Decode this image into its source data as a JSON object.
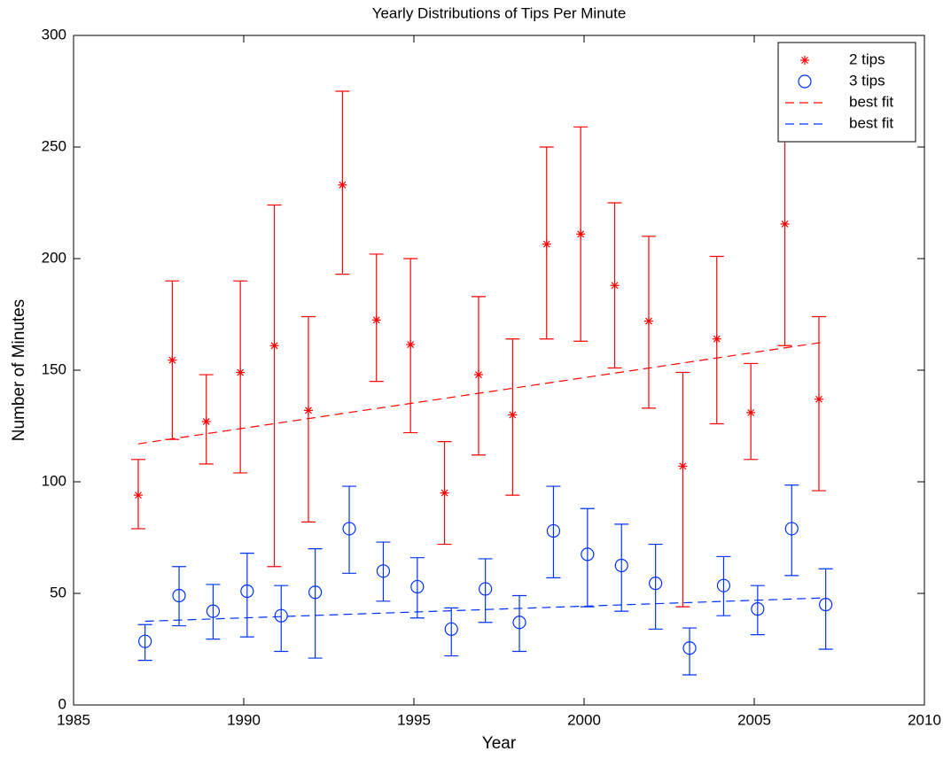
{
  "chart_data": {
    "type": "errorbar",
    "title": "Yearly Distributions of Tips Per Minute",
    "xlabel": "Year",
    "ylabel": "Number of Minutes",
    "xlim": [
      1985,
      2010
    ],
    "xticks": [
      1985,
      1990,
      1995,
      2000,
      2005,
      2010
    ],
    "ylim": [
      0,
      300
    ],
    "yticks": [
      0,
      50,
      100,
      150,
      200,
      250,
      300
    ],
    "grid": false,
    "legend": "upper right",
    "series": [
      {
        "name": "2 tips",
        "color": "#ff0000",
        "marker": "asterisk",
        "x": [
          1986.9,
          1987.9,
          1988.9,
          1989.9,
          1990.9,
          1991.9,
          1992.9,
          1993.9,
          1994.9,
          1995.9,
          1996.9,
          1997.9,
          1998.9,
          1999.9,
          2000.9,
          2001.9,
          2002.9,
          2003.9,
          2004.9,
          2005.9,
          2006.9
        ],
        "values": [
          94,
          154.5,
          127,
          149,
          161,
          132,
          233,
          172.5,
          161.5,
          95,
          148,
          130,
          206.5,
          211,
          188,
          172,
          107,
          164,
          131,
          215.5,
          137
        ],
        "lower": [
          79,
          119,
          108,
          104,
          62,
          82,
          193,
          145,
          122,
          72,
          112,
          94,
          164,
          163,
          151,
          133,
          44,
          126,
          110,
          161,
          96
        ],
        "upper": [
          110,
          190,
          148,
          190,
          224,
          174,
          275,
          202,
          200,
          118,
          183,
          164,
          250,
          259,
          225,
          210,
          149,
          201,
          153,
          270,
          174
        ]
      },
      {
        "name": "3 tips",
        "color": "#0033ff",
        "marker": "circle",
        "x": [
          1987.1,
          1988.1,
          1989.1,
          1990.1,
          1991.1,
          1992.1,
          1993.1,
          1994.1,
          1995.1,
          1996.1,
          1997.1,
          1998.1,
          1999.1,
          2000.1,
          2001.1,
          2002.1,
          2003.1,
          2004.1,
          2005.1,
          2006.1,
          2007.1
        ],
        "values": [
          28.5,
          49,
          42,
          51,
          40,
          50.5,
          79,
          60,
          53,
          34,
          52,
          37,
          78,
          67.5,
          62.5,
          54.5,
          25.5,
          53.5,
          43,
          79,
          45
        ],
        "lower": [
          20,
          35.5,
          29.5,
          30.5,
          24,
          21,
          59,
          46.5,
          39,
          22,
          37,
          24,
          57,
          44,
          42,
          34,
          13.5,
          40,
          31.5,
          58,
          25
        ],
        "upper": [
          36,
          62,
          54,
          68,
          53.5,
          70,
          98,
          73,
          66,
          43.5,
          65.5,
          49,
          98,
          88,
          81,
          72,
          34.5,
          66.5,
          53.5,
          98.5,
          61
        ]
      },
      {
        "name": "best fit",
        "color": "#ff0000",
        "linestyle": "dashed",
        "x": [
          1986.9,
          2007.0
        ],
        "values": [
          117,
          162.5
        ]
      },
      {
        "name": "best fit",
        "color": "#0033ff",
        "linestyle": "dashed",
        "x": [
          1987.1,
          2007.1
        ],
        "values": [
          37.5,
          48
        ]
      }
    ]
  }
}
